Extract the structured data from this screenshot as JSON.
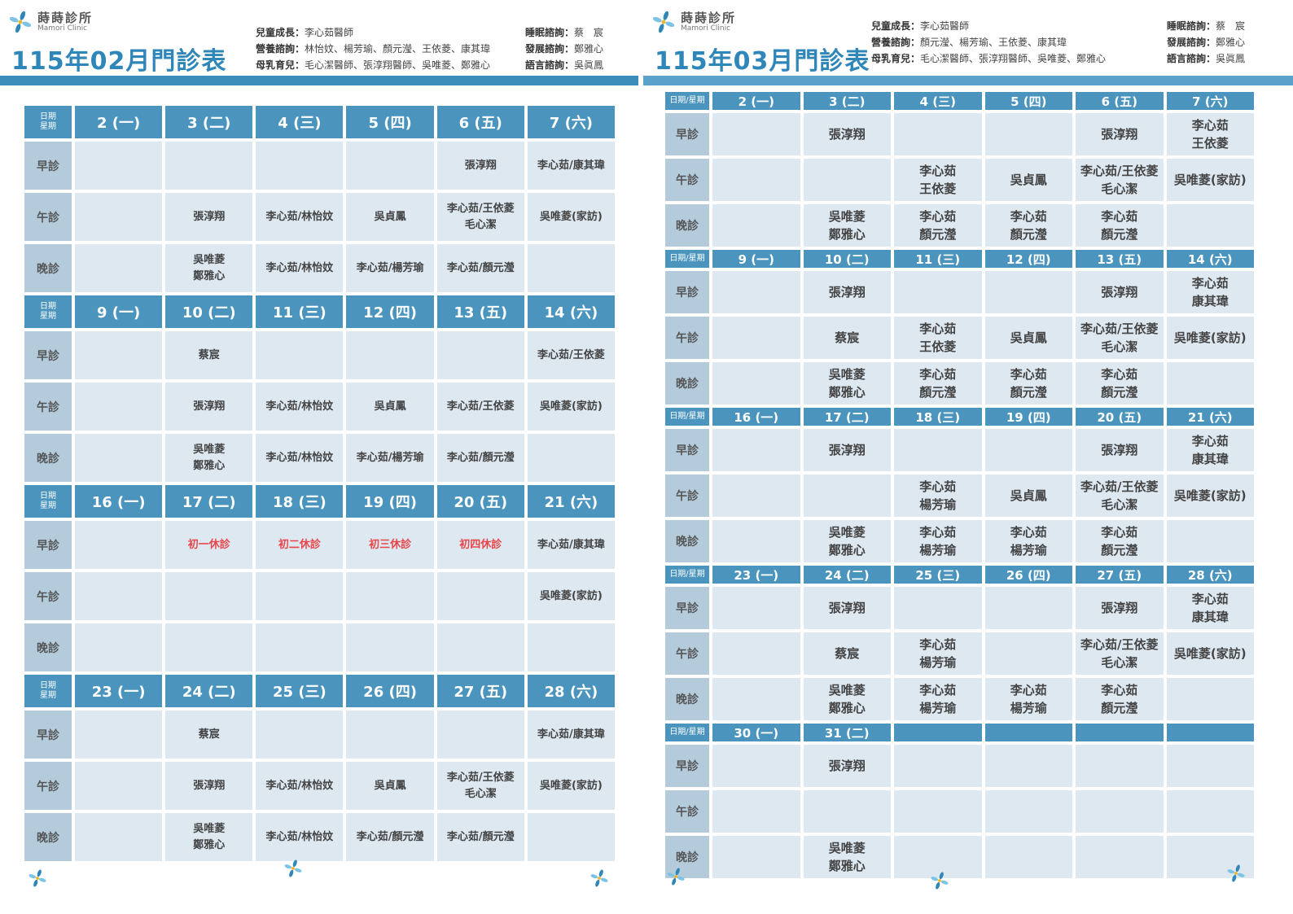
{
  "pages": [
    {
      "clinic_name": "蒔蒔診所",
      "clinic_name_en": "Mamori Clinic",
      "title": "115年02月門診表",
      "staff_left": [
        {
          "label": "兒童成長：",
          "value": "李心茹醫師"
        },
        {
          "label": "營養諮詢：",
          "value": "林怡妏、楊芳瑜、顏元瀅、王依菱、康其瑋"
        },
        {
          "label": "母乳育兒：",
          "value": "毛心潔醫師、張淳翔醫師、吳唯菱、鄭雅心"
        }
      ],
      "staff_right": [
        {
          "label": "睡眠諮詢：",
          "value": "蔡　宸"
        },
        {
          "label": "發展諮詢：",
          "value": "鄭雅心"
        },
        {
          "label": "語言諮詢：",
          "value": "吳眞鳳"
        }
      ],
      "corner": "日期\n星期",
      "session_labels": [
        "早診",
        "午診",
        "晚診"
      ],
      "weeks": [
        {
          "days": [
            "2 (一)",
            "3 (二)",
            "4 (三)",
            "5 (四)",
            "6 (五)",
            "7 (六)"
          ],
          "rows": [
            [
              null,
              null,
              null,
              null,
              "張淳翔",
              "李心茹/康其瑋"
            ],
            [
              null,
              "張淳翔",
              "李心茹/林怡妏",
              "吳貞鳳",
              "李心茹/王依菱\n毛心潔",
              "吳唯菱(家訪)"
            ],
            [
              null,
              "吳唯菱\n鄭雅心",
              "李心茹/林怡妏",
              "李心茹/楊芳瑜",
              "李心茹/顏元瀅",
              null
            ]
          ]
        },
        {
          "days": [
            "9 (一)",
            "10 (二)",
            "11 (三)",
            "12 (四)",
            "13 (五)",
            "14 (六)"
          ],
          "rows": [
            [
              null,
              "蔡宸",
              null,
              null,
              null,
              "李心茹/王依菱"
            ],
            [
              null,
              "張淳翔",
              "李心茹/林怡妏",
              "吳貞鳳",
              "李心茹/王依菱",
              "吳唯菱(家訪)"
            ],
            [
              null,
              "吳唯菱\n鄭雅心",
              "李心茹/林怡妏",
              "李心茹/楊芳瑜",
              "李心茹/顏元瀅",
              null
            ]
          ]
        },
        {
          "days": [
            "16 (一)",
            "17 (二)",
            "18 (三)",
            "19 (四)",
            "20 (五)",
            "21 (六)"
          ],
          "rows": [
            [
              null,
              {
                "text": "初一休診",
                "color": "#e8474c"
              },
              {
                "text": "初二休診",
                "color": "#e8474c"
              },
              {
                "text": "初三休診",
                "color": "#e8474c"
              },
              {
                "text": "初四休診",
                "color": "#e8474c"
              },
              "李心茹/康其瑋"
            ],
            [
              null,
              null,
              null,
              null,
              null,
              "吳唯菱(家訪)"
            ],
            [
              null,
              null,
              null,
              null,
              null,
              null
            ]
          ]
        },
        {
          "days": [
            "23 (一)",
            "24 (二)",
            "25 (三)",
            "26 (四)",
            "27 (五)",
            "28 (六)"
          ],
          "rows": [
            [
              null,
              "蔡宸",
              null,
              null,
              null,
              "李心茹/康其瑋"
            ],
            [
              null,
              "張淳翔",
              "李心茹/林怡妏",
              "吳貞鳳",
              "李心茹/王依菱\n毛心潔",
              "吳唯菱(家訪)"
            ],
            [
              null,
              "吳唯菱\n鄭雅心",
              "李心茹/林怡妏",
              "李心茹/顏元瀅",
              "李心茹/顏元瀅",
              null
            ]
          ]
        }
      ]
    },
    {
      "clinic_name": "蒔蒔診所",
      "clinic_name_en": "Mamori Clinic",
      "title": "115年03月門診表",
      "staff_left": [
        {
          "label": "兒童成長：",
          "value": "李心茹醫師"
        },
        {
          "label": "營養諮詢：",
          "value": "顏元瀅、楊芳瑜、王依菱、康其瑋"
        },
        {
          "label": "母乳育兒：",
          "value": "毛心潔醫師、張淳翔醫師、吳唯菱、鄭雅心"
        }
      ],
      "staff_right": [
        {
          "label": "睡眠諮詢：",
          "value": "蔡　宸"
        },
        {
          "label": "發展諮詢：",
          "value": "鄭雅心"
        },
        {
          "label": "語言諮詢：",
          "value": "吳眞鳳"
        }
      ],
      "corner": "日期/星期",
      "session_labels": [
        "早診",
        "午診",
        "晚診"
      ],
      "weeks": [
        {
          "days": [
            "2 (一)",
            "3 (二)",
            "4 (三)",
            "5 (四)",
            "6 (五)",
            "7 (六)"
          ],
          "rows": [
            [
              null,
              "張淳翔",
              null,
              null,
              "張淳翔",
              "李心茹\n王依菱"
            ],
            [
              null,
              null,
              "李心茹\n王依菱",
              "吳貞鳳",
              "李心茹/王依菱\n毛心潔",
              "吳唯菱(家訪)"
            ],
            [
              null,
              "吳唯菱\n鄭雅心",
              "李心茹\n顏元瀅",
              "李心茹\n顏元瀅",
              "李心茹\n顏元瀅",
              null
            ]
          ]
        },
        {
          "days": [
            "9 (一)",
            "10 (二)",
            "11 (三)",
            "12 (四)",
            "13 (五)",
            "14 (六)"
          ],
          "rows": [
            [
              null,
              "張淳翔",
              null,
              null,
              "張淳翔",
              "李心茹\n康其瑋"
            ],
            [
              null,
              "蔡宸",
              "李心茹\n王依菱",
              "吳貞鳳",
              "李心茹/王依菱\n毛心潔",
              "吳唯菱(家訪)"
            ],
            [
              null,
              "吳唯菱\n鄭雅心",
              "李心茹\n顏元瀅",
              "李心茹\n顏元瀅",
              "李心茹\n顏元瀅",
              null
            ]
          ]
        },
        {
          "days": [
            "16 (一)",
            "17 (二)",
            "18 (三)",
            "19 (四)",
            "20 (五)",
            "21 (六)"
          ],
          "rows": [
            [
              null,
              "張淳翔",
              null,
              null,
              "張淳翔",
              "李心茹\n康其瑋"
            ],
            [
              null,
              null,
              "李心茹\n楊芳瑜",
              "吳貞鳳",
              "李心茹/王依菱\n毛心潔",
              "吳唯菱(家訪)"
            ],
            [
              null,
              "吳唯菱\n鄭雅心",
              "李心茹\n楊芳瑜",
              "李心茹\n楊芳瑜",
              "李心茹\n顏元瀅",
              null
            ]
          ]
        },
        {
          "days": [
            "23 (一)",
            "24 (二)",
            "25 (三)",
            "26 (四)",
            "27 (五)",
            "28 (六)"
          ],
          "rows": [
            [
              null,
              "張淳翔",
              null,
              null,
              "張淳翔",
              "李心茹\n康其瑋"
            ],
            [
              null,
              "蔡宸",
              "李心茹\n楊芳瑜",
              null,
              "李心茹/王依菱\n毛心潔",
              "吳唯菱(家訪)"
            ],
            [
              null,
              "吳唯菱\n鄭雅心",
              "李心茹\n楊芳瑜",
              "李心茹\n楊芳瑜",
              "李心茹\n顏元瀅",
              null
            ]
          ]
        },
        {
          "days": [
            "30 (一)",
            "31 (二)",
            null,
            null,
            null,
            null
          ],
          "rows": [
            [
              null,
              "張淳翔",
              null,
              null,
              null,
              null
            ],
            [
              null,
              null,
              null,
              null,
              null,
              null
            ],
            [
              null,
              "吳唯菱\n鄭雅心",
              null,
              null,
              null,
              null
            ]
          ]
        }
      ]
    }
  ]
}
